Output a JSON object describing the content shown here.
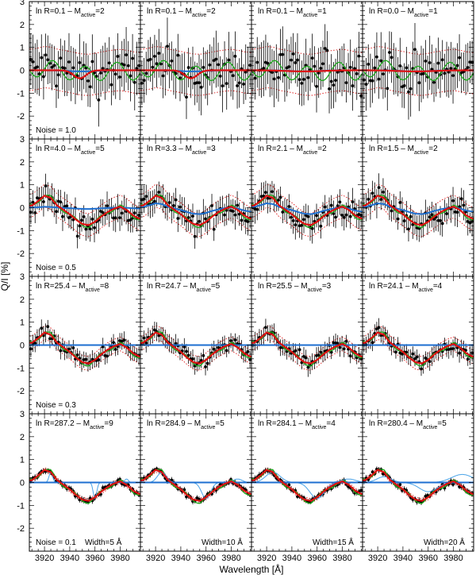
{
  "chart_data": {
    "type": "scatter",
    "xlabel": "Wavelength [Å]",
    "ylabel": "Q/I [%]",
    "xlim": [
      3908,
      3996
    ],
    "ylim": [
      -3,
      3
    ],
    "x_ticks": [
      "3920",
      "3940",
      "3960",
      "3980"
    ],
    "y_ticks": [
      "-2",
      "-1",
      "0",
      "1",
      "2",
      "3"
    ],
    "colors": {
      "data": "#000000",
      "green": "#1aa81a",
      "red": "#dd1111",
      "blue": "#1e6fd0",
      "blue_light": "#4aa3e8"
    },
    "rows": [
      {
        "noise": "Noise = 1.0",
        "amp": 0.25,
        "scatter": 0.85,
        "err": 1.05,
        "band": 0.9,
        "labels": [
          "ln R=0.1 – M",
          "ln R=0.1 – M",
          "ln R=0.1 – M",
          "ln R=0.0 – M"
        ],
        "m": [
          "2",
          "2",
          "1",
          "1"
        ]
      },
      {
        "noise": "Noise = 0.5",
        "amp": 0.95,
        "scatter": 0.45,
        "err": 0.55,
        "band": 0.5,
        "labels": [
          "ln R=4.0 – M",
          "ln R=3.3 – M",
          "ln R=2.1 – M",
          "ln R=1.5 – M"
        ],
        "m": [
          "5",
          "3",
          "2",
          "2"
        ]
      },
      {
        "noise": "Noise = 0.3",
        "amp": 1.0,
        "scatter": 0.28,
        "err": 0.35,
        "band": 0.3,
        "labels": [
          "ln R=25.4 – M",
          "ln R=24.7 – M",
          "ln R=25.5 – M",
          "ln R=24.1 – M"
        ],
        "m": [
          "8",
          "5",
          "3",
          "4"
        ]
      },
      {
        "noise": "Noise = 0.1",
        "amp": 1.0,
        "scatter": 0.1,
        "err": 0.12,
        "band": 0.1,
        "labels": [
          "ln R=287.2 – M",
          "ln R=284.9 – M",
          "ln R=284.1 – M",
          "ln R=280.4 – M"
        ],
        "m": [
          "9",
          "5",
          "4",
          "5"
        ]
      }
    ],
    "sub": "active",
    "widths": [
      "Width=5 Å",
      "Width=10 Å",
      "Width=15 Å",
      "Width=20 Å"
    ],
    "profile": {
      "x": [
        3910,
        3915,
        3920,
        3925,
        3930,
        3935,
        3940,
        3945,
        3950,
        3955,
        3960,
        3965,
        3970,
        3975,
        3980,
        3985,
        3990,
        3995
      ],
      "y": [
        0.1,
        0.3,
        0.55,
        0.45,
        0.1,
        -0.1,
        -0.3,
        -0.55,
        -0.75,
        -0.8,
        -0.65,
        -0.4,
        -0.2,
        -0.05,
        0.05,
        -0.1,
        -0.35,
        -0.5
      ]
    }
  }
}
